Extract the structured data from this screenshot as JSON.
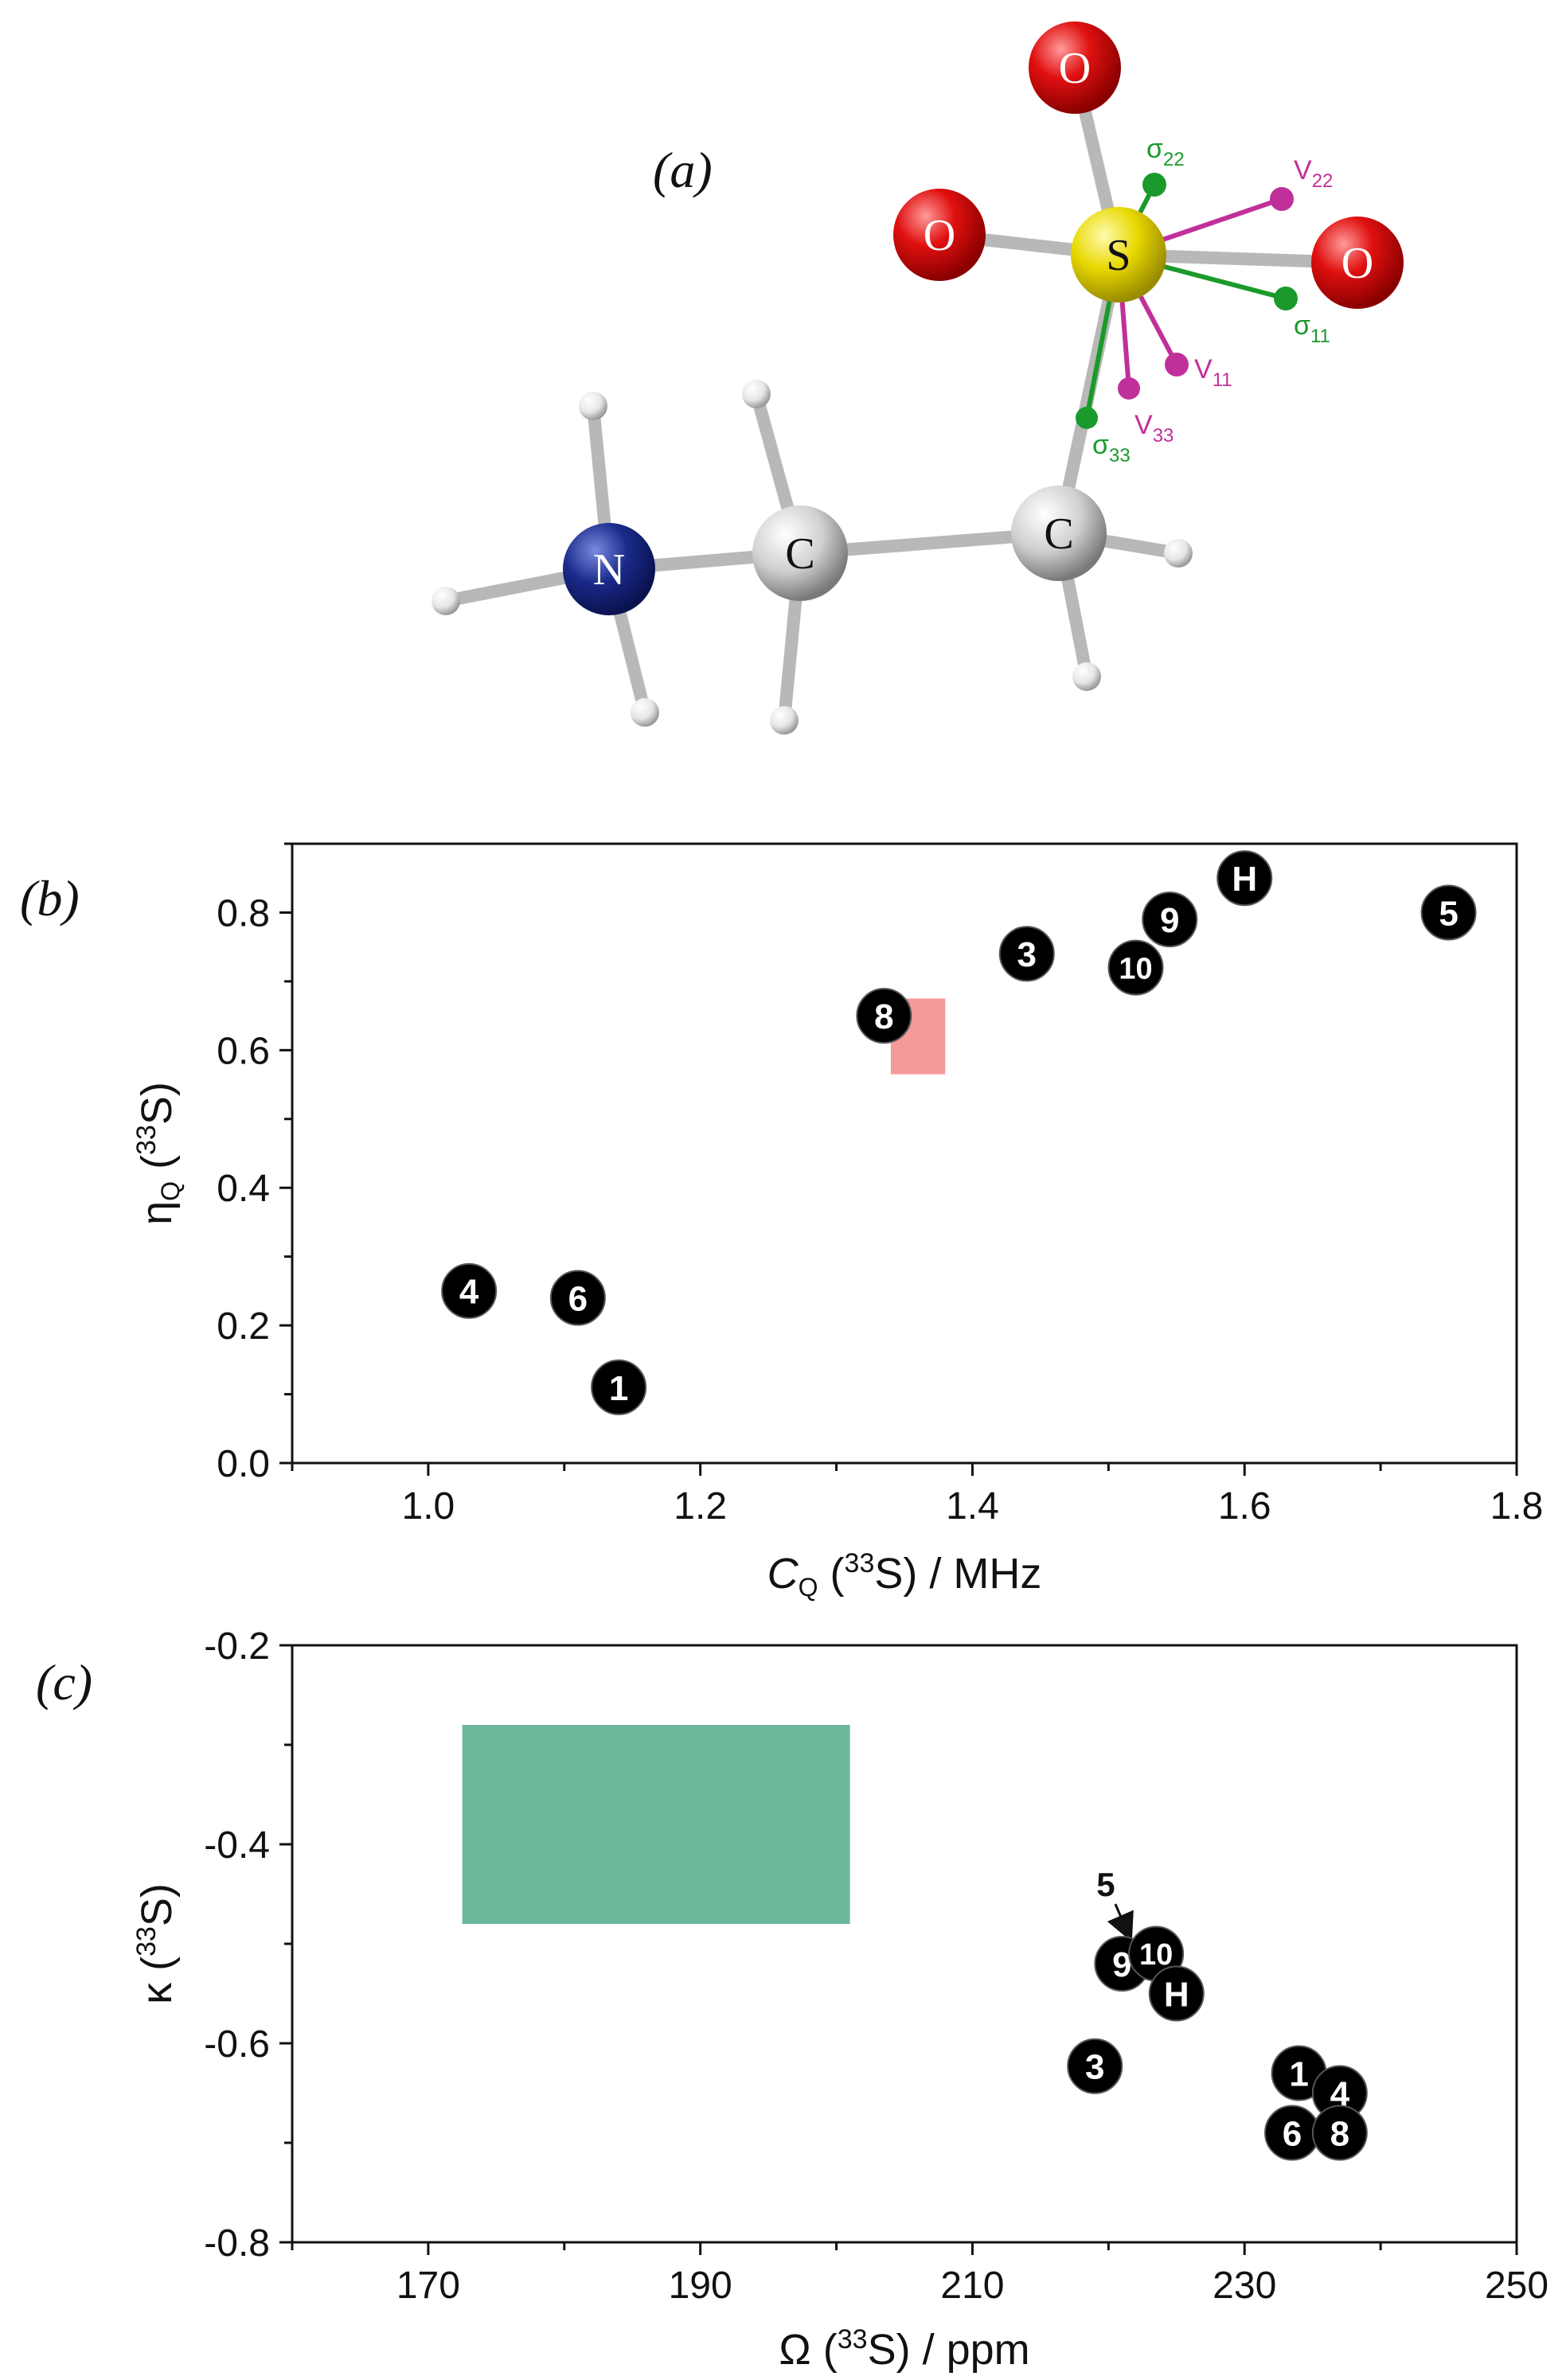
{
  "panel_a": {
    "label": "(a)",
    "atoms": {
      "S": "S",
      "N": "N",
      "C1": "C",
      "C2": "C",
      "O_top": "O",
      "O_left": "O",
      "O_right": "O"
    },
    "tensor_labels": {
      "sigma11": {
        "base": "σ",
        "sub": "11"
      },
      "sigma22": {
        "base": "σ",
        "sub": "22"
      },
      "sigma33": {
        "base": "σ",
        "sub": "33"
      },
      "v11": {
        "base": "V",
        "sub": "11"
      },
      "v22": {
        "base": "V",
        "sub": "22"
      },
      "v33": {
        "base": "V",
        "sub": "33"
      }
    },
    "colors": {
      "sulfur": "#e8d800",
      "oxygen": "#e00000",
      "nitrogen": "#1a2a8a",
      "carbon": "#d8d8d8",
      "hydrogen": "#eeeeee",
      "sigma": "#1a9a2a",
      "efg": "#c0309a"
    }
  },
  "chart_data": [
    {
      "type": "scatter",
      "panel_label": "(b)",
      "xlabel": {
        "main": "C",
        "sub": "Q",
        "unit": " (",
        "sup": "33",
        "tail": "S) / MHz"
      },
      "ylabel": {
        "main": "η",
        "sub": "Q",
        "unit": " (",
        "sup": "33",
        "tail": "S)"
      },
      "xlim": [
        0.9,
        1.8
      ],
      "ylim": [
        0.0,
        0.9
      ],
      "xticks": [
        "1.0",
        "1.2",
        "1.4",
        "1.6",
        "1.8"
      ],
      "yticks": [
        "0.0",
        "0.2",
        "0.4",
        "0.6",
        "0.8"
      ],
      "points": [
        {
          "label": "1",
          "x": 1.14,
          "y": 0.11
        },
        {
          "label": "4",
          "x": 1.03,
          "y": 0.25
        },
        {
          "label": "6",
          "x": 1.11,
          "y": 0.24
        },
        {
          "label": "8",
          "x": 1.335,
          "y": 0.65
        },
        {
          "label": "3",
          "x": 1.44,
          "y": 0.74
        },
        {
          "label": "10",
          "x": 1.52,
          "y": 0.72
        },
        {
          "label": "9",
          "x": 1.545,
          "y": 0.79
        },
        {
          "label": "H",
          "x": 1.6,
          "y": 0.85
        },
        {
          "label": "5",
          "x": 1.75,
          "y": 0.8
        }
      ],
      "region": {
        "x": [
          1.34,
          1.38
        ],
        "y": [
          0.565,
          0.675
        ],
        "color": "#f59a9a"
      },
      "marker_color": "#000000"
    },
    {
      "type": "scatter",
      "panel_label": "(c)",
      "xlabel": {
        "main": "Ω",
        "sub": "",
        "unit": " (",
        "sup": "33",
        "tail": "S) / ppm"
      },
      "ylabel": {
        "main": "κ",
        "sub": "",
        "unit": " (",
        "sup": "33",
        "tail": "S)"
      },
      "xlim": [
        160,
        250
      ],
      "ylim": [
        -0.8,
        -0.2
      ],
      "xticks": [
        "170",
        "190",
        "210",
        "230",
        "250"
      ],
      "yticks": [
        "-0.8",
        "-0.6",
        "-0.4",
        "-0.2"
      ],
      "points": [
        {
          "label": "3",
          "x": 219,
          "y": -0.623
        },
        {
          "label": "9",
          "x": 221,
          "y": -0.52
        },
        {
          "label": "10",
          "x": 223.5,
          "y": -0.51
        },
        {
          "label": "H",
          "x": 225,
          "y": -0.55
        },
        {
          "label": "1",
          "x": 234,
          "y": -0.63
        },
        {
          "label": "4",
          "x": 237,
          "y": -0.65
        },
        {
          "label": "6",
          "x": 233.5,
          "y": -0.69
        },
        {
          "label": "8",
          "x": 237,
          "y": -0.69
        }
      ],
      "annotation": {
        "label": "5",
        "x": 219.8,
        "y": -0.452,
        "arrow_to": [
          221.3,
          -0.485
        ]
      },
      "region": {
        "x": [
          172.5,
          201
        ],
        "y": [
          -0.28,
          -0.48
        ],
        "color": "#6db89a"
      },
      "marker_color": "#000000"
    }
  ]
}
